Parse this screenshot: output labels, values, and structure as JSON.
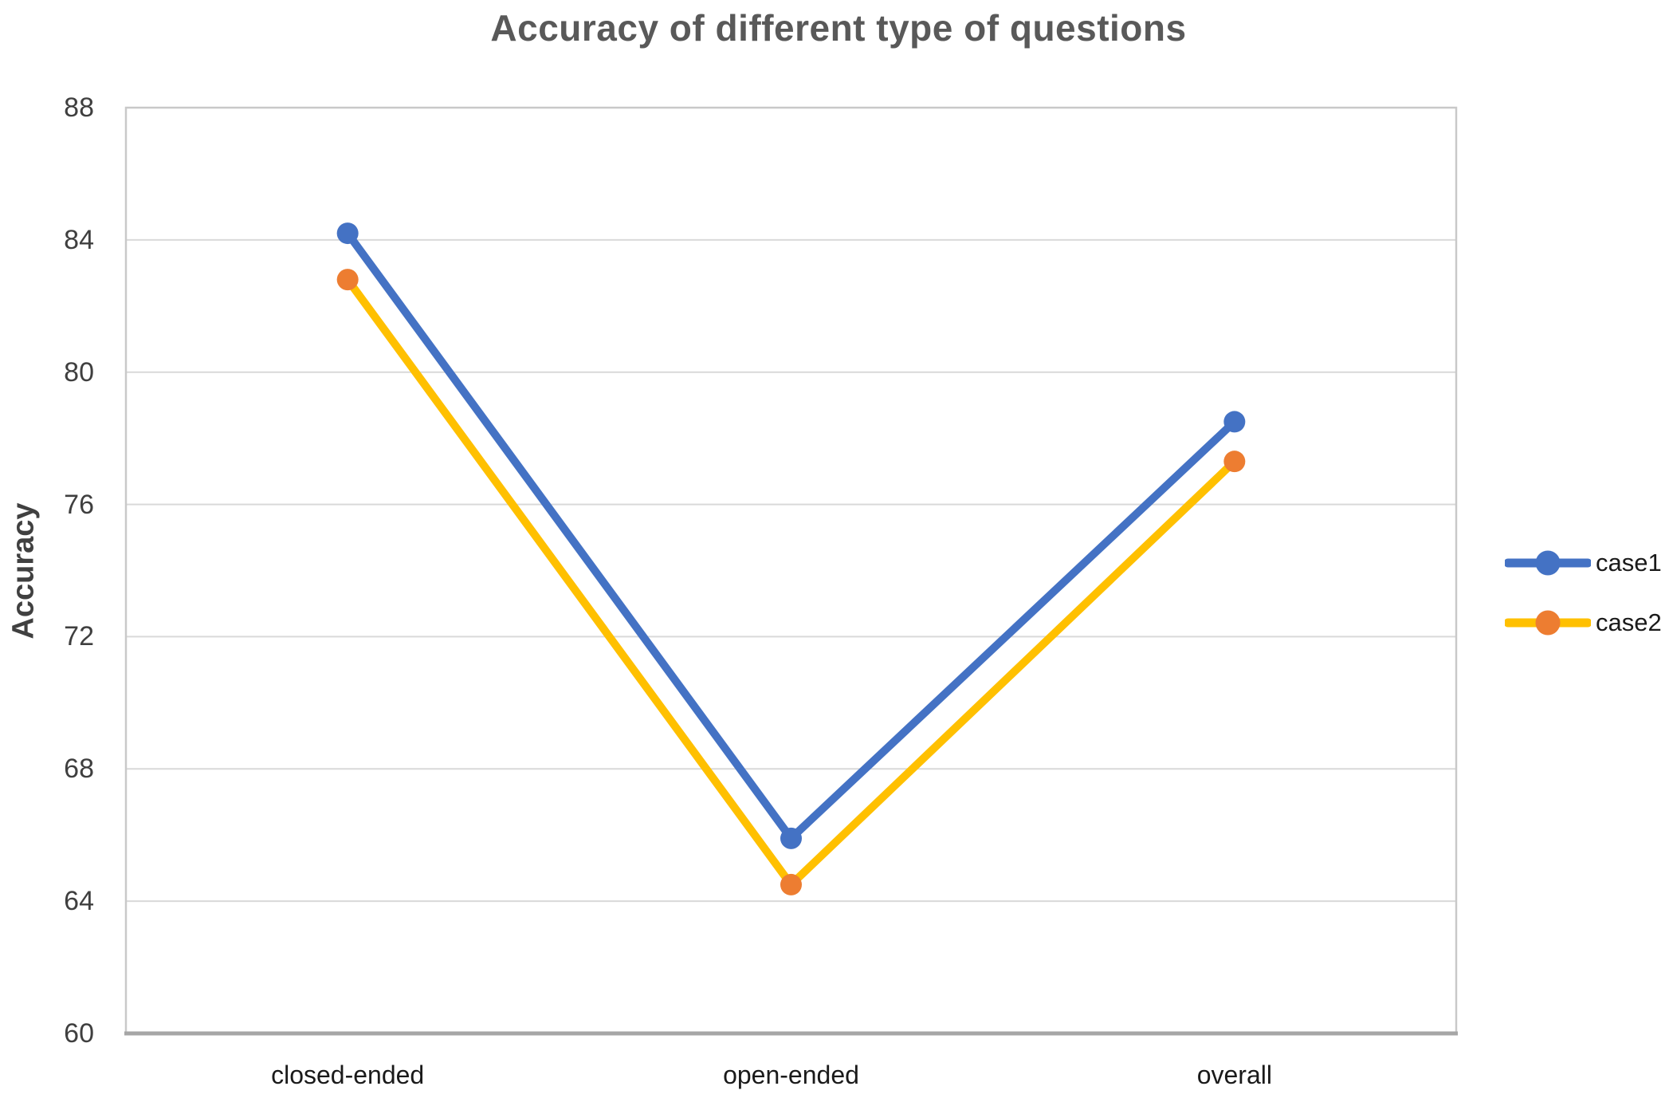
{
  "chart_data": {
    "type": "line",
    "title": "Accuracy of different type of questions",
    "xlabel": "",
    "ylabel": "Accuracy",
    "categories": [
      "closed-ended",
      "open-ended",
      "overall"
    ],
    "series": [
      {
        "name": "case1",
        "line_color": "#4472C4",
        "marker_color": "#4472C4",
        "values": [
          84.2,
          65.9,
          78.5
        ]
      },
      {
        "name": "case2",
        "line_color": "#FFC000",
        "marker_color": "#ED7D31",
        "values": [
          82.8,
          64.5,
          77.3
        ]
      }
    ],
    "ylim": [
      60,
      88
    ],
    "yticks": [
      88,
      84,
      80,
      76,
      72,
      68,
      64,
      60
    ],
    "grid": true,
    "legend_position": "right",
    "colors": {
      "gridline": "#D9D9D9",
      "plot_border": "#C9C9C9",
      "x_axis_line": "#A6A6A6",
      "title_text": "#595959",
      "axis_title_text": "#404040",
      "tick_label_text": "#3f3f3f",
      "category_label_text": "#1a1a1a",
      "legend_text": "#1a1a1a",
      "background": "#FFFFFF"
    }
  }
}
